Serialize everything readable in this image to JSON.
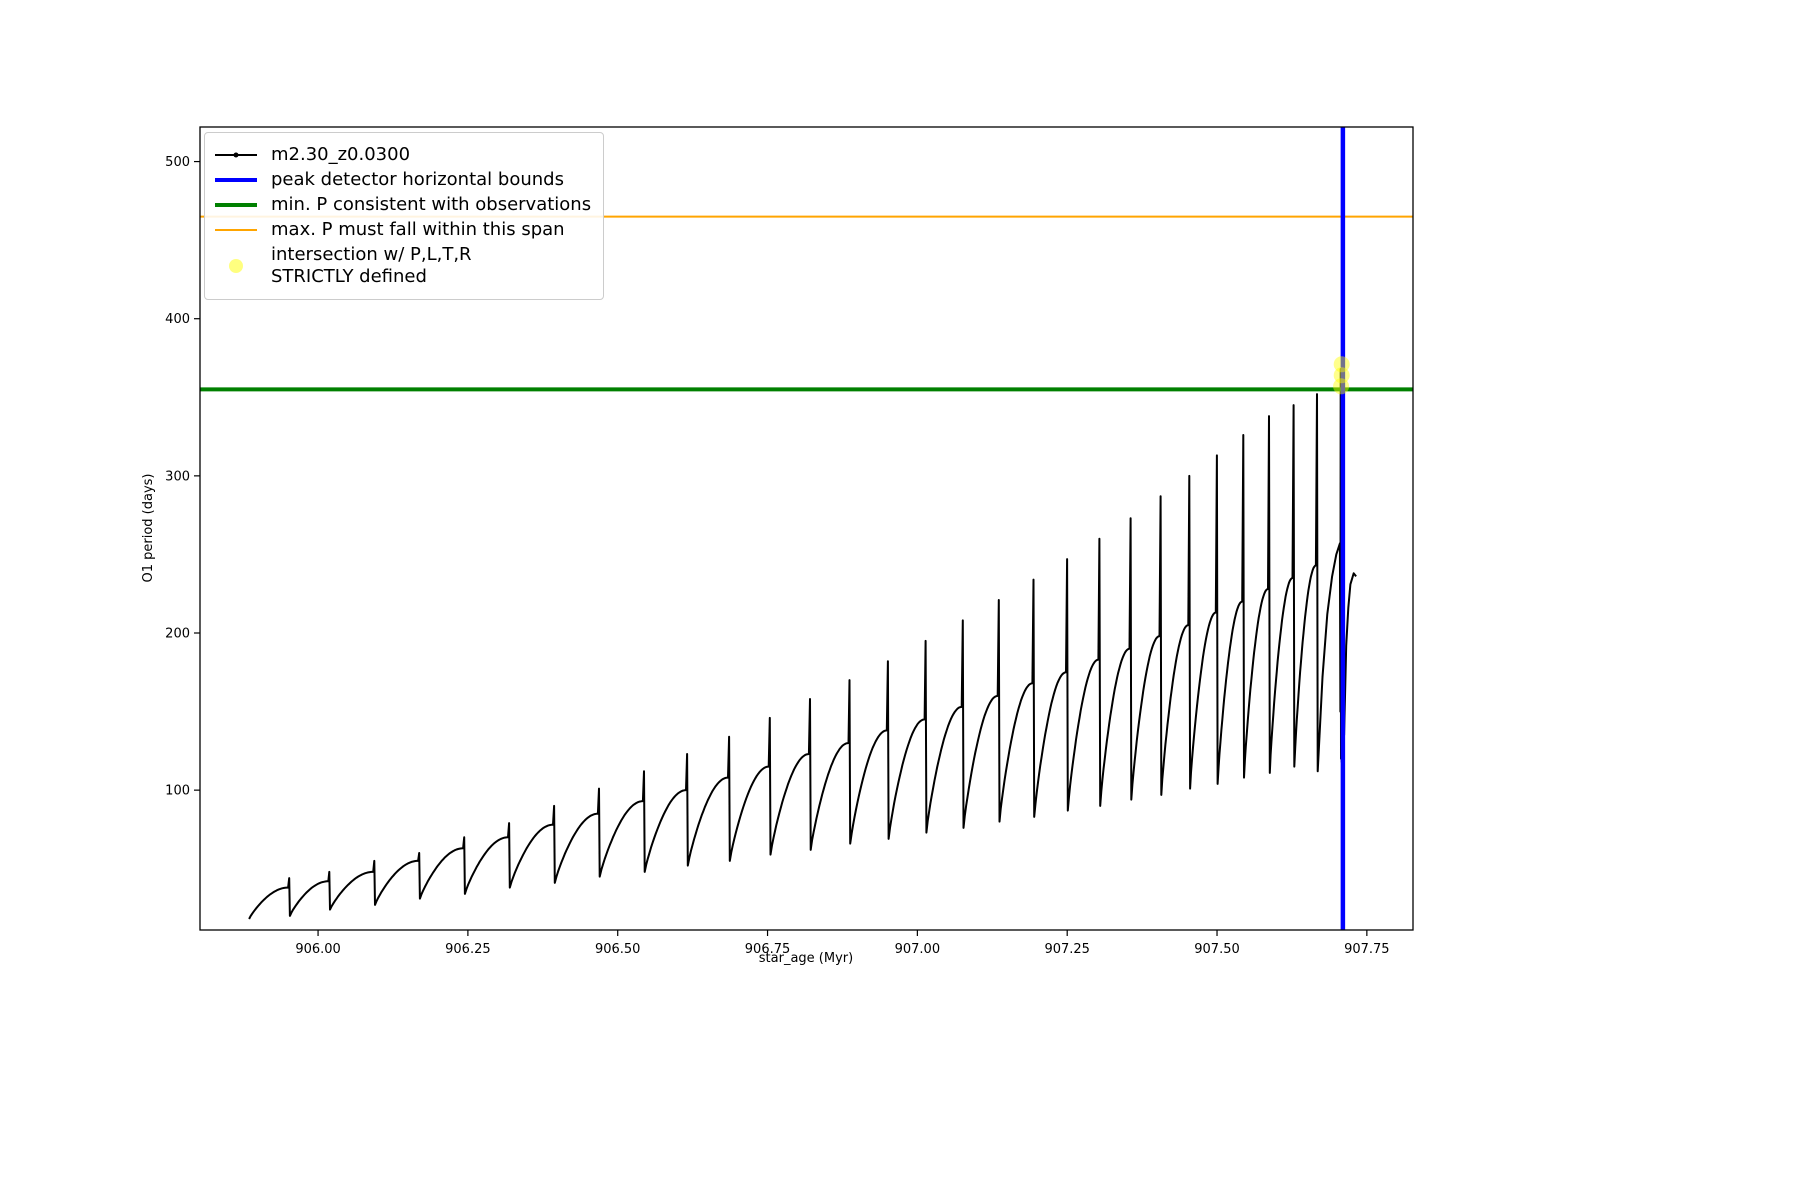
{
  "chart_data": {
    "type": "line",
    "title": "",
    "xlabel": "star_age (Myr)",
    "ylabel": "O1 period (days)",
    "xlim": [
      905.803,
      907.827
    ],
    "ylim": [
      11,
      522
    ],
    "xticks": [
      906.0,
      906.25,
      906.5,
      906.75,
      907.0,
      907.25,
      907.5,
      907.75
    ],
    "xtick_labels": [
      "906.00",
      "906.25",
      "906.50",
      "906.75",
      "907.00",
      "907.25",
      "907.50",
      "907.75"
    ],
    "yticks": [
      100,
      200,
      300,
      400,
      500
    ],
    "ytick_labels": [
      "100",
      "200",
      "300",
      "400",
      "500"
    ],
    "grid": false,
    "legend_position": "upper left",
    "series": [
      {
        "name": "m2.30_z0.0300",
        "color": "#000000",
        "line_width": 2,
        "cycles_comment": "each cycle: [age_start, age_end, period_min, arc_max, spike_peak] in Myr/days",
        "cycles": [
          [
            905.885,
            905.953,
            18,
            38,
            44
          ],
          [
            905.953,
            906.02,
            20,
            42,
            48
          ],
          [
            906.02,
            906.095,
            24,
            48,
            55
          ],
          [
            906.095,
            906.17,
            27,
            55,
            60
          ],
          [
            906.17,
            906.245,
            31,
            63,
            70
          ],
          [
            906.245,
            906.32,
            34,
            70,
            79
          ],
          [
            906.32,
            906.395,
            38,
            78,
            90
          ],
          [
            906.395,
            906.47,
            41,
            85,
            101
          ],
          [
            906.47,
            906.545,
            45,
            93,
            112
          ],
          [
            906.545,
            906.617,
            48,
            100,
            123
          ],
          [
            906.617,
            906.687,
            52,
            108,
            134
          ],
          [
            906.687,
            906.755,
            55,
            115,
            146
          ],
          [
            906.755,
            906.822,
            59,
            123,
            158
          ],
          [
            906.822,
            906.888,
            62,
            130,
            170
          ],
          [
            906.888,
            906.952,
            66,
            138,
            182
          ],
          [
            906.952,
            907.015,
            69,
            145,
            195
          ],
          [
            907.015,
            907.077,
            73,
            153,
            208
          ],
          [
            907.077,
            907.137,
            76,
            160,
            221
          ],
          [
            907.137,
            907.195,
            80,
            168,
            234
          ],
          [
            907.195,
            907.251,
            83,
            175,
            247
          ],
          [
            907.251,
            907.305,
            87,
            183,
            260
          ],
          [
            907.305,
            907.357,
            90,
            190,
            273
          ],
          [
            907.357,
            907.407,
            94,
            198,
            287
          ],
          [
            907.407,
            907.455,
            97,
            205,
            300
          ],
          [
            907.455,
            907.501,
            101,
            213,
            313
          ],
          [
            907.501,
            907.545,
            104,
            220,
            326
          ],
          [
            907.545,
            907.588,
            108,
            228,
            338
          ],
          [
            907.588,
            907.629,
            111,
            235,
            345
          ],
          [
            907.629,
            907.668,
            115,
            243,
            352
          ]
        ],
        "tail_comment": "final approach to peak-detector line: [age, period]",
        "tail": [
          [
            907.668,
            112
          ],
          [
            907.676,
            172
          ],
          [
            907.684,
            212
          ],
          [
            907.692,
            236
          ],
          [
            907.699,
            250
          ],
          [
            907.705,
            257
          ],
          [
            907.7058,
            150
          ],
          [
            907.7063,
            368
          ],
          [
            907.7068,
            120
          ],
          [
            907.7073,
            365
          ],
          [
            907.7078,
            118
          ],
          [
            907.7083,
            360
          ],
          [
            907.7088,
            122
          ],
          [
            907.7093,
            355
          ],
          [
            907.71,
            128
          ],
          [
            907.7108,
            300
          ],
          [
            907.7114,
            140
          ],
          [
            907.712,
            135
          ],
          [
            907.7155,
            192
          ],
          [
            907.719,
            216
          ],
          [
            907.7225,
            231
          ],
          [
            907.728,
            238
          ],
          [
            907.732,
            236
          ]
        ]
      }
    ],
    "vline": {
      "x": 907.71,
      "color": "#0000ff",
      "width": 4.5,
      "label": "peak detector horizontal bounds"
    },
    "hlines": [
      {
        "y": 355,
        "color": "#008000",
        "width": 4,
        "label": "min. P consistent with observations"
      },
      {
        "y": 465,
        "color": "#ffa500",
        "width": 2,
        "label": "max. P must fall within this span"
      }
    ],
    "scatter": {
      "label": "intersection w/ P,L,T,R STRICTLY defined",
      "color": "#ffff00",
      "opacity": 0.45,
      "radius": 8,
      "points": [
        [
          907.707,
          357
        ],
        [
          907.708,
          364
        ],
        [
          907.708,
          371
        ]
      ]
    }
  },
  "legend": {
    "entries": [
      {
        "label": "m2.30_z0.0300",
        "swatch": "line-dot",
        "color": "#000000",
        "opacity": 1
      },
      {
        "label": "peak detector horizontal bounds",
        "swatch": "thick-line",
        "color": "#0000ff",
        "opacity": 1
      },
      {
        "label": "min. P consistent with observations",
        "swatch": "thick-line",
        "color": "#008000",
        "opacity": 1
      },
      {
        "label": "max. P must fall within this span",
        "swatch": "line",
        "color": "#ffa500",
        "opacity": 1
      },
      {
        "label": "intersection w/ P,L,T,R\nSTRICTLY defined",
        "swatch": "dot",
        "color": "#ffff00",
        "opacity": 0.5
      }
    ]
  }
}
